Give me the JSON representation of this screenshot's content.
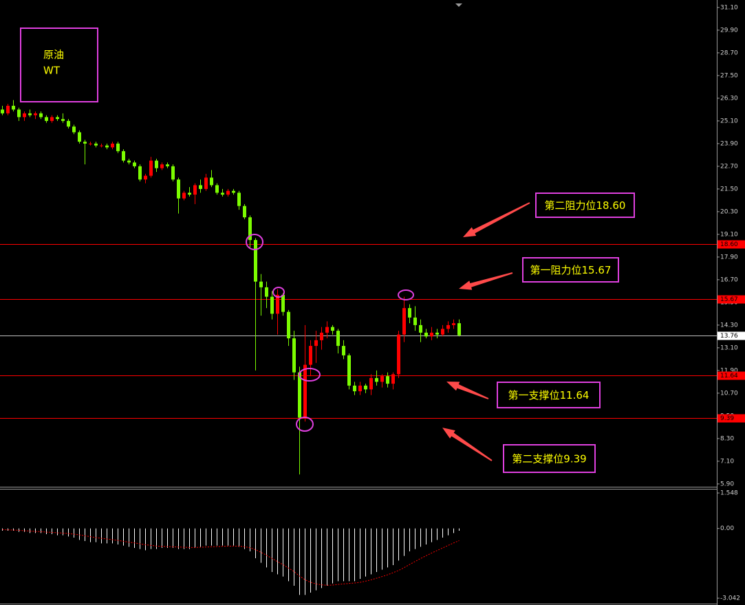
{
  "chart_data": {
    "type": "candlestick",
    "symbol_lines": [
      "原油",
      "WT"
    ],
    "up_color": "#ff0000",
    "down_color": "#7cfc00",
    "ylim": [
      5.75,
      31.35
    ],
    "yticks": [
      {
        "value": 31.1,
        "label": "31.10"
      },
      {
        "value": 29.9,
        "label": "29.90"
      },
      {
        "value": 28.7,
        "label": "28.70"
      },
      {
        "value": 27.5,
        "label": "27.50"
      },
      {
        "value": 26.3,
        "label": "26.30"
      },
      {
        "value": 25.1,
        "label": "25.10"
      },
      {
        "value": 23.9,
        "label": "23.90"
      },
      {
        "value": 22.7,
        "label": "22.70"
      },
      {
        "value": 21.5,
        "label": "21.50"
      },
      {
        "value": 20.3,
        "label": "20.30"
      },
      {
        "value": 19.1,
        "label": "19.10"
      },
      {
        "value": 17.9,
        "label": "17.90"
      },
      {
        "value": 16.7,
        "label": "16.70"
      },
      {
        "value": 15.5,
        "label": "15.50"
      },
      {
        "value": 14.3,
        "label": "14.30"
      },
      {
        "value": 13.1,
        "label": "13.10"
      },
      {
        "value": 11.9,
        "label": "11.90"
      },
      {
        "value": 10.7,
        "label": "10.70"
      },
      {
        "value": 9.5,
        "label": "9.50"
      },
      {
        "value": 8.3,
        "label": "8.30"
      },
      {
        "value": 7.1,
        "label": "7.10"
      },
      {
        "value": 5.9,
        "label": "5.90"
      }
    ],
    "levels": [
      {
        "value": 18.6,
        "label": "18.60",
        "color": "#ff0000"
      },
      {
        "value": 15.67,
        "label": "15.67",
        "color": "#ff0000"
      },
      {
        "value": 13.76,
        "label": "13.76",
        "color": "#c0c0c0"
      },
      {
        "value": 11.64,
        "label": "11.64",
        "color": "#ff0000"
      },
      {
        "value": 9.39,
        "label": "9.39",
        "color": "#ff0000"
      }
    ],
    "annotations": [
      "第二阻力位18.60",
      "第一阻力位15.67",
      "第一支撑位11.64",
      "第二支撑位9.39"
    ],
    "ohlc": [
      [
        25.7,
        25.9,
        25.4,
        25.5
      ],
      [
        25.5,
        26.0,
        25.4,
        25.9
      ],
      [
        25.9,
        26.2,
        25.6,
        25.7
      ],
      [
        25.7,
        25.8,
        25.1,
        25.3
      ],
      [
        25.3,
        25.6,
        25.1,
        25.5
      ],
      [
        25.5,
        25.7,
        25.3,
        25.4
      ],
      [
        25.4,
        25.6,
        25.2,
        25.5
      ],
      [
        25.5,
        25.6,
        25.2,
        25.3
      ],
      [
        25.3,
        25.4,
        25.0,
        25.1
      ],
      [
        25.1,
        25.4,
        25.0,
        25.3
      ],
      [
        25.3,
        25.4,
        25.1,
        25.2
      ],
      [
        25.2,
        25.5,
        25.0,
        25.1
      ],
      [
        25.1,
        25.2,
        24.7,
        24.8
      ],
      [
        24.8,
        24.9,
        24.4,
        24.5
      ],
      [
        24.5,
        24.6,
        23.9,
        24.0
      ],
      [
        24.0,
        24.1,
        22.8,
        23.9
      ],
      [
        23.9,
        24.0,
        23.8,
        23.9
      ],
      [
        23.9,
        24.0,
        23.7,
        23.8
      ],
      [
        23.8,
        23.9,
        23.7,
        23.8
      ],
      [
        23.8,
        23.9,
        23.6,
        23.7
      ],
      [
        23.7,
        24.0,
        23.6,
        23.9
      ],
      [
        23.9,
        24.0,
        23.4,
        23.5
      ],
      [
        23.5,
        23.6,
        22.9,
        23.0
      ],
      [
        23.0,
        23.1,
        22.8,
        22.9
      ],
      [
        22.9,
        23.0,
        22.6,
        22.7
      ],
      [
        22.7,
        22.8,
        21.9,
        22.0
      ],
      [
        22.0,
        22.3,
        21.8,
        22.2
      ],
      [
        22.2,
        23.2,
        22.1,
        23.0
      ],
      [
        23.0,
        23.1,
        22.4,
        22.6
      ],
      [
        22.6,
        22.9,
        22.5,
        22.8
      ],
      [
        22.8,
        22.9,
        22.6,
        22.7
      ],
      [
        22.7,
        22.8,
        21.9,
        22.0
      ],
      [
        22.0,
        22.1,
        20.2,
        21.0
      ],
      [
        21.0,
        21.4,
        20.9,
        21.3
      ],
      [
        21.3,
        21.6,
        21.1,
        21.2
      ],
      [
        21.2,
        21.8,
        20.7,
        21.7
      ],
      [
        21.7,
        22.0,
        21.3,
        21.5
      ],
      [
        21.5,
        22.3,
        21.4,
        22.1
      ],
      [
        22.1,
        22.5,
        21.6,
        21.7
      ],
      [
        21.7,
        21.8,
        21.2,
        21.3
      ],
      [
        21.3,
        21.5,
        21.1,
        21.2
      ],
      [
        21.2,
        21.5,
        21.1,
        21.4
      ],
      [
        21.4,
        21.5,
        21.2,
        21.3
      ],
      [
        21.3,
        21.4,
        20.4,
        20.6
      ],
      [
        20.6,
        20.7,
        19.9,
        20.0
      ],
      [
        20.0,
        20.1,
        18.4,
        18.8
      ],
      [
        18.8,
        18.9,
        11.9,
        16.6
      ],
      [
        16.6,
        17.0,
        14.8,
        16.3
      ],
      [
        16.3,
        16.6,
        15.2,
        15.8
      ],
      [
        15.8,
        16.1,
        14.6,
        14.9
      ],
      [
        14.9,
        16.2,
        13.8,
        15.9
      ],
      [
        15.9,
        16.0,
        14.8,
        15.0
      ],
      [
        15.0,
        15.1,
        13.2,
        13.6
      ],
      [
        13.6,
        14.0,
        11.4,
        11.8
      ],
      [
        11.8,
        12.1,
        6.4,
        9.4
      ],
      [
        9.4,
        14.3,
        9.2,
        12.2
      ],
      [
        12.2,
        13.5,
        11.6,
        13.2
      ],
      [
        13.2,
        14.0,
        12.3,
        13.5
      ],
      [
        13.5,
        14.2,
        13.0,
        13.9
      ],
      [
        13.9,
        14.5,
        13.6,
        14.2
      ],
      [
        14.2,
        14.3,
        13.8,
        14.0
      ],
      [
        14.0,
        14.1,
        12.8,
        13.2
      ],
      [
        13.2,
        13.5,
        12.5,
        12.7
      ],
      [
        12.7,
        12.8,
        10.9,
        11.1
      ],
      [
        11.1,
        11.3,
        10.6,
        10.8
      ],
      [
        10.8,
        11.3,
        10.6,
        11.1
      ],
      [
        11.1,
        11.2,
        10.7,
        10.9
      ],
      [
        10.9,
        11.7,
        10.6,
        11.5
      ],
      [
        11.5,
        11.9,
        11.1,
        11.3
      ],
      [
        11.3,
        11.7,
        11.0,
        11.6
      ],
      [
        11.6,
        11.8,
        11.0,
        11.2
      ],
      [
        11.2,
        11.8,
        10.9,
        11.7
      ],
      [
        11.7,
        14.0,
        11.5,
        13.8
      ],
      [
        13.8,
        15.8,
        13.4,
        15.2
      ],
      [
        15.2,
        15.4,
        14.4,
        14.7
      ],
      [
        14.7,
        15.3,
        14.0,
        14.3
      ],
      [
        14.3,
        14.6,
        13.4,
        13.9
      ],
      [
        13.9,
        14.1,
        13.6,
        13.7
      ],
      [
        13.7,
        14.2,
        13.5,
        13.9
      ],
      [
        13.9,
        14.1,
        13.6,
        13.8
      ],
      [
        13.8,
        14.3,
        13.7,
        14.1
      ],
      [
        14.1,
        14.5,
        13.9,
        14.3
      ],
      [
        14.3,
        14.6,
        14.1,
        14.4
      ],
      [
        14.4,
        14.6,
        13.7,
        13.76
      ]
    ],
    "indicator": {
      "type": "macd",
      "ylim": [
        -3.28,
        1.73
      ],
      "yticks": [
        1.548,
        {
          "value": 0,
          "label": "0.00"
        },
        -3.042
      ],
      "histogram_color": "#ffffff",
      "signal_color": "#ff0000",
      "histogram": [
        -0.1,
        -0.1,
        -0.1,
        -0.15,
        -0.15,
        -0.2,
        -0.2,
        -0.2,
        -0.25,
        -0.25,
        -0.3,
        -0.3,
        -0.35,
        -0.4,
        -0.5,
        -0.55,
        -0.6,
        -0.6,
        -0.65,
        -0.65,
        -0.65,
        -0.7,
        -0.75,
        -0.8,
        -0.85,
        -0.9,
        -0.95,
        -0.9,
        -0.9,
        -0.85,
        -0.85,
        -0.85,
        -0.9,
        -0.9,
        -0.9,
        -0.85,
        -0.8,
        -0.75,
        -0.75,
        -0.75,
        -0.75,
        -0.75,
        -0.75,
        -0.8,
        -0.9,
        -1.0,
        -1.3,
        -1.5,
        -1.7,
        -1.9,
        -2.0,
        -2.1,
        -2.3,
        -2.5,
        -2.9,
        -2.9,
        -2.8,
        -2.7,
        -2.6,
        -2.5,
        -2.4,
        -2.3,
        -2.3,
        -2.3,
        -2.3,
        -2.2,
        -2.1,
        -2.0,
        -1.9,
        -1.8,
        -1.7,
        -1.6,
        -1.4,
        -1.2,
        -1.0,
        -0.9,
        -0.8,
        -0.7,
        -0.6,
        -0.5,
        -0.4,
        -0.3,
        -0.2,
        -0.1
      ],
      "signal": [
        -0.05,
        -0.06,
        -0.07,
        -0.08,
        -0.1,
        -0.11,
        -0.13,
        -0.14,
        -0.16,
        -0.17,
        -0.19,
        -0.2,
        -0.22,
        -0.25,
        -0.28,
        -0.32,
        -0.36,
        -0.4,
        -0.43,
        -0.46,
        -0.49,
        -0.52,
        -0.56,
        -0.6,
        -0.63,
        -0.67,
        -0.71,
        -0.74,
        -0.77,
        -0.78,
        -0.79,
        -0.8,
        -0.81,
        -0.82,
        -0.83,
        -0.83,
        -0.82,
        -0.81,
        -0.8,
        -0.79,
        -0.78,
        -0.77,
        -0.77,
        -0.77,
        -0.8,
        -0.84,
        -0.93,
        -1.04,
        -1.17,
        -1.31,
        -1.45,
        -1.58,
        -1.73,
        -1.88,
        -2.08,
        -2.24,
        -2.35,
        -2.42,
        -2.46,
        -2.48,
        -2.47,
        -2.44,
        -2.42,
        -2.4,
        -2.38,
        -2.35,
        -2.3,
        -2.24,
        -2.17,
        -2.1,
        -2.02,
        -1.93,
        -1.83,
        -1.71,
        -1.57,
        -1.44,
        -1.31,
        -1.19,
        -1.07,
        -0.96,
        -0.85,
        -0.74,
        -0.63,
        -0.53
      ]
    }
  }
}
